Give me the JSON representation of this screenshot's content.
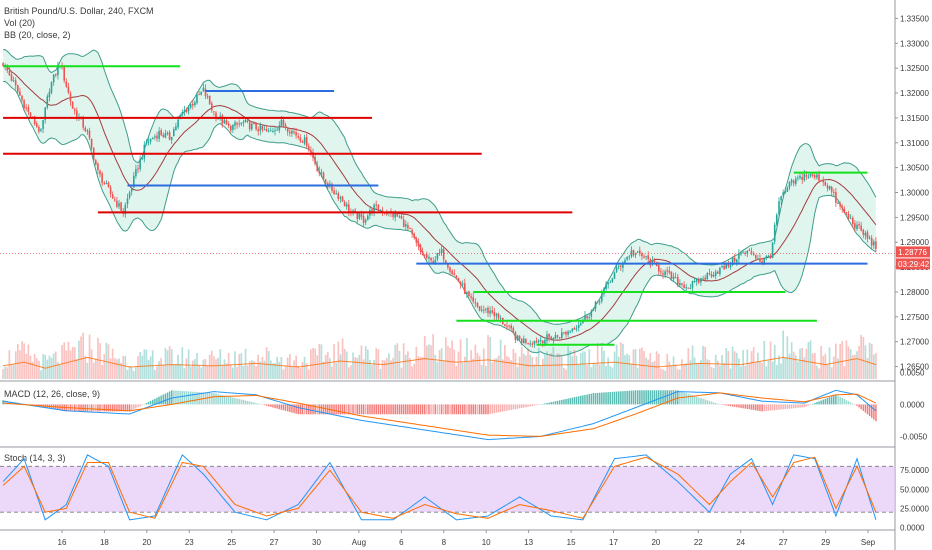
{
  "header": {
    "symbol": "British Pound/U.S. Dollar, 240, FXCM",
    "vol": "Vol (20)",
    "bb": "BB (20, close, 2)"
  },
  "colors": {
    "up": "#26a69a",
    "down": "#ef5350",
    "bb_fill": "#c8ece2",
    "bb_line": "#3f9d8b",
    "basis": "#a33d3d",
    "hline_red": "#e00000",
    "hline_green": "#14e01c",
    "hline_blue": "#2b6de0",
    "macd": "#2196f3",
    "signal": "#ff6d00",
    "stoch_fill": "#e4c8f5",
    "stoch_k": "#2196f3",
    "stoch_d": "#ff6d00",
    "price_tag": "#ef5350"
  },
  "price_panel": {
    "price_now_label": "1.28776",
    "countdown_label": "03:29:42"
  },
  "chart_data": [
    {
      "type": "candlestick",
      "title": "British Pound/U.S. Dollar, 240, FXCM",
      "ylim": [
        1.2625,
        1.3375
      ],
      "y_ticks": [
        "1.33500",
        "1.33000",
        "1.32500",
        "1.32000",
        "1.31500",
        "1.31000",
        "1.30500",
        "1.30000",
        "1.29500",
        "1.29000",
        "1.28500",
        "1.28000",
        "1.27500",
        "1.27000",
        "1.26500"
      ],
      "x_ticks": [
        "16",
        "18",
        "20",
        "23",
        "25",
        "27",
        "30",
        "Aug",
        "6",
        "8",
        "10",
        "13",
        "15",
        "17",
        "20",
        "22",
        "24",
        "27",
        "29",
        "Sep"
      ],
      "close_path": [
        [
          0,
          1.326
        ],
        [
          5,
          1.322
        ],
        [
          12,
          1.316
        ],
        [
          18,
          1.312
        ],
        [
          22,
          1.321
        ],
        [
          27,
          1.326
        ],
        [
          33,
          1.317
        ],
        [
          40,
          1.312
        ],
        [
          45,
          1.304
        ],
        [
          52,
          1.299
        ],
        [
          57,
          1.296
        ],
        [
          63,
          1.304
        ],
        [
          68,
          1.31
        ],
        [
          74,
          1.312
        ],
        [
          79,
          1.311
        ],
        [
          85,
          1.316
        ],
        [
          90,
          1.318
        ],
        [
          95,
          1.3205
        ],
        [
          100,
          1.316
        ],
        [
          107,
          1.313
        ],
        [
          114,
          1.314
        ],
        [
          120,
          1.313
        ],
        [
          126,
          1.312
        ],
        [
          132,
          1.314
        ],
        [
          138,
          1.312
        ],
        [
          144,
          1.31
        ],
        [
          150,
          1.304
        ],
        [
          155,
          1.301
        ],
        [
          160,
          1.299
        ],
        [
          165,
          1.296
        ],
        [
          171,
          1.2945
        ],
        [
          176,
          1.297
        ],
        [
          182,
          1.296
        ],
        [
          188,
          1.295
        ],
        [
          193,
          1.292
        ],
        [
          198,
          1.288
        ],
        [
          203,
          1.286
        ],
        [
          208,
          1.288
        ],
        [
          213,
          1.284
        ],
        [
          218,
          1.281
        ],
        [
          222,
          1.278
        ],
        [
          226,
          1.2765
        ],
        [
          232,
          1.276
        ],
        [
          238,
          1.2735
        ],
        [
          244,
          1.2705
        ],
        [
          250,
          1.27
        ],
        [
          256,
          1.2705
        ],
        [
          262,
          1.271
        ],
        [
          268,
          1.272
        ],
        [
          274,
          1.274
        ],
        [
          280,
          1.2765
        ],
        [
          286,
          1.281
        ],
        [
          292,
          1.285
        ],
        [
          298,
          1.288
        ],
        [
          304,
          1.287
        ],
        [
          310,
          1.285
        ],
        [
          315,
          1.2835
        ],
        [
          320,
          1.282
        ],
        [
          325,
          1.281
        ],
        [
          331,
          1.2825
        ],
        [
          337,
          1.284
        ],
        [
          343,
          1.285
        ],
        [
          349,
          1.2875
        ],
        [
          355,
          1.288
        ],
        [
          360,
          1.286
        ],
        [
          364,
          1.2875
        ],
        [
          368,
          1.298
        ],
        [
          373,
          1.3015
        ],
        [
          380,
          1.3035
        ],
        [
          387,
          1.303
        ],
        [
          392,
          1.301
        ],
        [
          396,
          1.2975
        ],
        [
          400,
          1.2955
        ],
        [
          405,
          1.293
        ],
        [
          410,
          1.291
        ],
        [
          414,
          1.289
        ]
      ],
      "volume_path": [
        [
          0,
          0.55
        ],
        [
          10,
          0.7
        ],
        [
          20,
          0.45
        ],
        [
          40,
          0.9
        ],
        [
          60,
          0.5
        ],
        [
          80,
          0.6
        ],
        [
          100,
          0.55
        ],
        [
          120,
          0.65
        ],
        [
          140,
          0.5
        ],
        [
          160,
          0.75
        ],
        [
          180,
          0.6
        ],
        [
          200,
          0.85
        ],
        [
          215,
          0.7
        ],
        [
          230,
          0.8
        ],
        [
          250,
          0.55
        ],
        [
          270,
          0.6
        ],
        [
          290,
          0.7
        ],
        [
          310,
          0.5
        ],
        [
          330,
          0.65
        ],
        [
          350,
          0.6
        ],
        [
          370,
          0.9
        ],
        [
          390,
          0.6
        ],
        [
          405,
          0.85
        ],
        [
          414,
          0.6
        ]
      ],
      "horizontal_levels": [
        {
          "color": "green",
          "price": 1.3254,
          "from": 0,
          "to": 84
        },
        {
          "color": "red",
          "price": 1.315,
          "from": 0,
          "to": 175
        },
        {
          "color": "red",
          "price": 1.3078,
          "from": 0,
          "to": 227
        },
        {
          "color": "red",
          "price": 1.296,
          "from": 45,
          "to": 270
        },
        {
          "color": "blue",
          "price": 1.3204,
          "from": 96,
          "to": 157
        },
        {
          "color": "blue",
          "price": 1.3014,
          "from": 59,
          "to": 178
        },
        {
          "color": "green",
          "price": 1.304,
          "from": 375,
          "to": 410
        },
        {
          "color": "blue",
          "price": 1.2857,
          "from": 196,
          "to": 410
        },
        {
          "color": "green",
          "price": 1.28,
          "from": 223,
          "to": 371
        },
        {
          "color": "green",
          "price": 1.2742,
          "from": 215,
          "to": 386
        },
        {
          "color": "green",
          "price": 1.2694,
          "from": 253,
          "to": 290
        }
      ],
      "price_now": 1.28776
    },
    {
      "type": "line",
      "title": "MACD (12, 26, close, 9)",
      "ylim": [
        -0.0065,
        0.0035
      ],
      "y_ticks": [
        "0.0050",
        "0.0000",
        "-0.0050"
      ],
      "series": [
        {
          "name": "MACD",
          "points": [
            [
              0,
              0.0005
            ],
            [
              30,
              -0.001
            ],
            [
              60,
              -0.0015
            ],
            [
              80,
              0.001
            ],
            [
              100,
              0.002
            ],
            [
              120,
              0.0015
            ],
            [
              140,
              -0.0005
            ],
            [
              170,
              -0.0025
            ],
            [
              200,
              -0.004
            ],
            [
              230,
              -0.0055
            ],
            [
              255,
              -0.005
            ],
            [
              280,
              -0.003
            ],
            [
              300,
              -0.0005
            ],
            [
              320,
              0.002
            ],
            [
              340,
              0.0018
            ],
            [
              360,
              0.0005
            ],
            [
              380,
              0.0002
            ],
            [
              395,
              0.0022
            ],
            [
              405,
              0.0015
            ],
            [
              414,
              -0.001
            ]
          ]
        },
        {
          "name": "Signal",
          "points": [
            [
              0,
              0.0002
            ],
            [
              30,
              -0.0005
            ],
            [
              60,
              -0.001
            ],
            [
              80,
              0.0
            ],
            [
              100,
              0.0012
            ],
            [
              120,
              0.0014
            ],
            [
              140,
              0.0002
            ],
            [
              170,
              -0.0018
            ],
            [
              200,
              -0.0033
            ],
            [
              230,
              -0.0048
            ],
            [
              255,
              -0.005
            ],
            [
              280,
              -0.0038
            ],
            [
              300,
              -0.0015
            ],
            [
              320,
              0.001
            ],
            [
              340,
              0.0018
            ],
            [
              360,
              0.001
            ],
            [
              380,
              0.0004
            ],
            [
              395,
              0.0015
            ],
            [
              405,
              0.0016
            ],
            [
              414,
              0.0002
            ]
          ]
        }
      ]
    },
    {
      "type": "line",
      "title": "Stoch (14, 3, 3)",
      "ylim": [
        -2,
        104
      ],
      "y_ticks": [
        "75.0000",
        "50.0000",
        "25.0000",
        "0.0000"
      ],
      "bands": [
        20,
        80
      ],
      "series": [
        {
          "name": "K",
          "points": [
            [
              0,
              60
            ],
            [
              10,
              90
            ],
            [
              20,
              10
            ],
            [
              30,
              30
            ],
            [
              40,
              95
            ],
            [
              50,
              80
            ],
            [
              60,
              10
            ],
            [
              72,
              15
            ],
            [
              85,
              95
            ],
            [
              95,
              70
            ],
            [
              110,
              20
            ],
            [
              125,
              10
            ],
            [
              140,
              30
            ],
            [
              155,
              85
            ],
            [
              170,
              10
            ],
            [
              185,
              10
            ],
            [
              200,
              40
            ],
            [
              215,
              10
            ],
            [
              230,
              15
            ],
            [
              245,
              40
            ],
            [
              260,
              15
            ],
            [
              275,
              10
            ],
            [
              290,
              90
            ],
            [
              305,
              95
            ],
            [
              320,
              60
            ],
            [
              335,
              20
            ],
            [
              345,
              70
            ],
            [
              355,
              90
            ],
            [
              365,
              30
            ],
            [
              375,
              95
            ],
            [
              385,
              90
            ],
            [
              395,
              15
            ],
            [
              405,
              90
            ],
            [
              414,
              10
            ]
          ]
        },
        {
          "name": "D",
          "points": [
            [
              0,
              55
            ],
            [
              10,
              80
            ],
            [
              20,
              20
            ],
            [
              30,
              25
            ],
            [
              40,
              85
            ],
            [
              50,
              85
            ],
            [
              60,
              20
            ],
            [
              72,
              12
            ],
            [
              85,
              85
            ],
            [
              95,
              80
            ],
            [
              110,
              30
            ],
            [
              125,
              15
            ],
            [
              140,
              25
            ],
            [
              155,
              75
            ],
            [
              170,
              20
            ],
            [
              185,
              12
            ],
            [
              200,
              30
            ],
            [
              215,
              18
            ],
            [
              230,
              12
            ],
            [
              245,
              30
            ],
            [
              260,
              22
            ],
            [
              275,
              12
            ],
            [
              290,
              80
            ],
            [
              305,
              92
            ],
            [
              320,
              70
            ],
            [
              335,
              30
            ],
            [
              345,
              60
            ],
            [
              355,
              85
            ],
            [
              365,
              40
            ],
            [
              375,
              85
            ],
            [
              385,
              92
            ],
            [
              395,
              25
            ],
            [
              405,
              80
            ],
            [
              414,
              20
            ]
          ]
        }
      ]
    }
  ]
}
